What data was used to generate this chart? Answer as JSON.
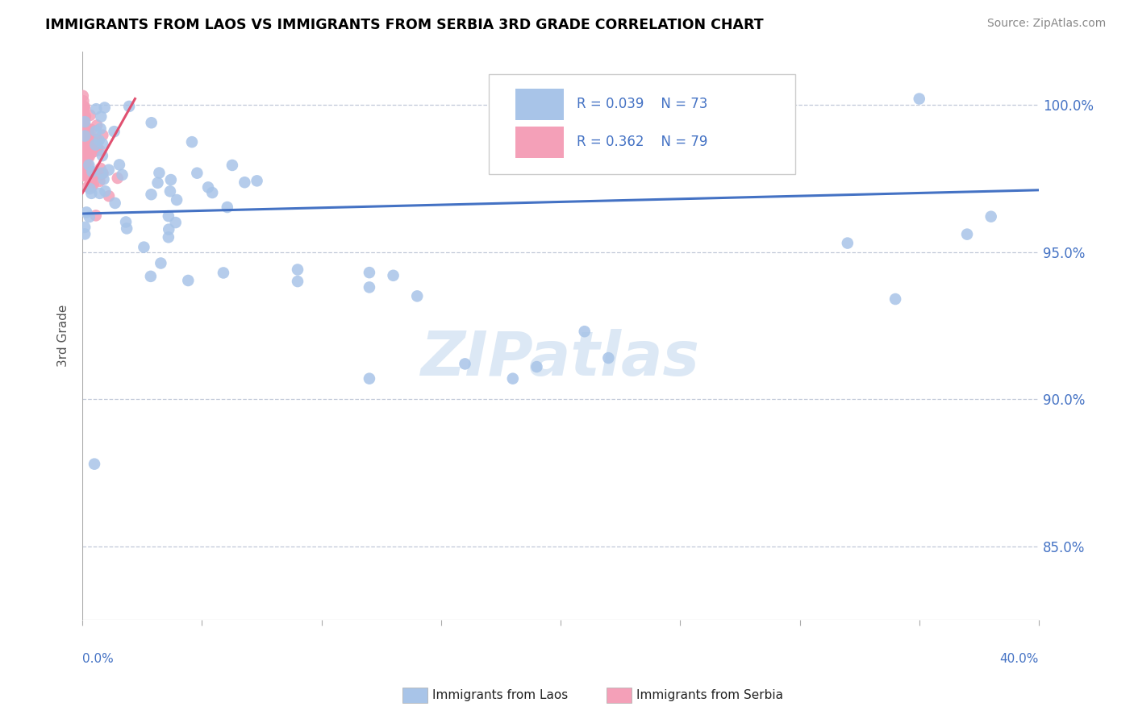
{
  "title": "IMMIGRANTS FROM LAOS VS IMMIGRANTS FROM SERBIA 3RD GRADE CORRELATION CHART",
  "source": "Source: ZipAtlas.com",
  "ylabel": "3rd Grade",
  "xlim": [
    0.0,
    0.4
  ],
  "ylim": [
    0.825,
    1.018
  ],
  "y_ticks": [
    0.85,
    0.9,
    0.95,
    1.0
  ],
  "y_tick_labels": [
    "85.0%",
    "90.0%",
    "95.0%",
    "100.0%"
  ],
  "laos_R": 0.039,
  "laos_N": 73,
  "serbia_R": 0.362,
  "serbia_N": 79,
  "laos_color": "#a8c4e8",
  "serbia_color": "#f4a0b8",
  "laos_line_color": "#4472c4",
  "serbia_line_color": "#e05070",
  "background_color": "#ffffff",
  "grid_color": "#c0c8d8",
  "title_color": "#000000",
  "axis_label_color": "#4472c4",
  "ylabel_color": "#555555",
  "source_color": "#888888",
  "watermark_color": "#dce8f5",
  "laos_trend_x": [
    0.0,
    0.4
  ],
  "laos_trend_y": [
    0.963,
    0.971
  ],
  "serbia_trend_x": [
    0.0,
    0.022
  ],
  "serbia_trend_y": [
    0.97,
    1.002
  ]
}
